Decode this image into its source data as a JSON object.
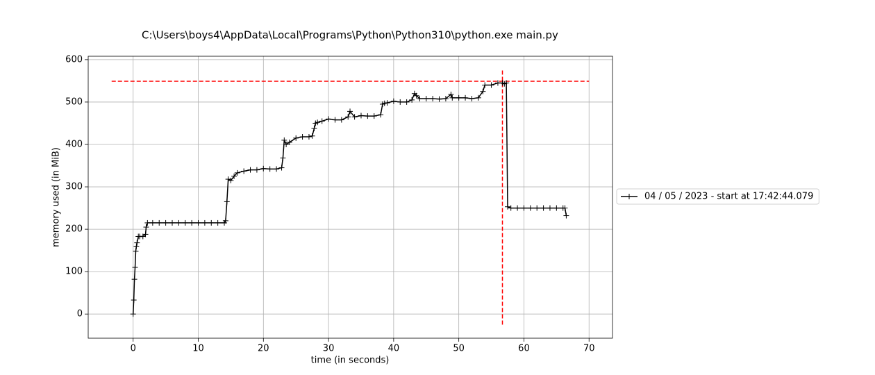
{
  "chart_data": {
    "type": "line",
    "title": "C:\\Users\\boys4\\AppData\\Local\\Programs\\Python\\Python310\\python.exe main.py",
    "xlabel": "time (in seconds)",
    "ylabel": "memory used (in MiB)",
    "x": [
      0,
      0.1,
      0.2,
      0.3,
      0.4,
      0.5,
      0.6,
      0.8,
      1.0,
      1.5,
      1.9,
      2.0,
      2.2,
      3,
      4,
      5,
      6,
      7,
      8,
      9,
      10,
      11,
      12,
      13,
      14,
      14.2,
      14.4,
      14.6,
      15,
      15.5,
      16,
      17,
      18,
      19,
      20,
      21,
      22,
      22.8,
      23.0,
      23.2,
      23.5,
      24,
      25,
      26,
      27,
      27.5,
      27.8,
      28,
      28.3,
      29,
      30,
      31,
      32,
      33,
      33.3,
      34,
      35,
      36,
      37,
      38,
      38.3,
      38.6,
      39,
      40,
      41,
      42,
      42.8,
      43.2,
      43.5,
      44,
      45,
      46,
      47,
      48,
      48.8,
      49,
      50,
      51,
      52,
      53,
      53.7,
      54,
      55,
      56,
      56.7,
      57,
      57.3,
      57.5,
      58,
      59,
      60,
      61,
      62,
      63,
      64,
      65,
      66,
      66.3,
      66.5
    ],
    "series": [
      {
        "name": "04 / 05 / 2023 - start at 17:42:44.079",
        "color": "#000000",
        "values": [
          0,
          33,
          82,
          110,
          148,
          160,
          168,
          183,
          183,
          183,
          188,
          205,
          215,
          215,
          215,
          215,
          215,
          215,
          215,
          215,
          215,
          215,
          215,
          215,
          215,
          220,
          265,
          318,
          315,
          325,
          333,
          337,
          340,
          340,
          343,
          342,
          342,
          345,
          368,
          410,
          400,
          405,
          415,
          418,
          418,
          420,
          438,
          450,
          452,
          455,
          460,
          458,
          458,
          465,
          478,
          465,
          468,
          467,
          467,
          470,
          495,
          497,
          498,
          502,
          500,
          500,
          505,
          520,
          515,
          508,
          508,
          508,
          507,
          508,
          518,
          510,
          510,
          510,
          508,
          510,
          525,
          540,
          540,
          545,
          545,
          543,
          545,
          253,
          250,
          250,
          250,
          250,
          250,
          250,
          250,
          250,
          250,
          250,
          232
        ]
      }
    ],
    "reference_lines": [
      {
        "orientation": "horizontal",
        "y": 549,
        "xmin": -3.3,
        "xmax": 70,
        "color": "#ff0000"
      },
      {
        "orientation": "vertical",
        "x": 56.7,
        "ymin": -25,
        "ymax": 575,
        "color": "#ff0000"
      }
    ],
    "xlim": [
      -6.9,
      73.6
    ],
    "ylim": [
      -57,
      608
    ],
    "xticks": [
      0,
      10,
      20,
      30,
      40,
      50,
      60,
      70
    ],
    "yticks": [
      0,
      100,
      200,
      300,
      400,
      500,
      600
    ],
    "grid": true,
    "legend": "right"
  }
}
